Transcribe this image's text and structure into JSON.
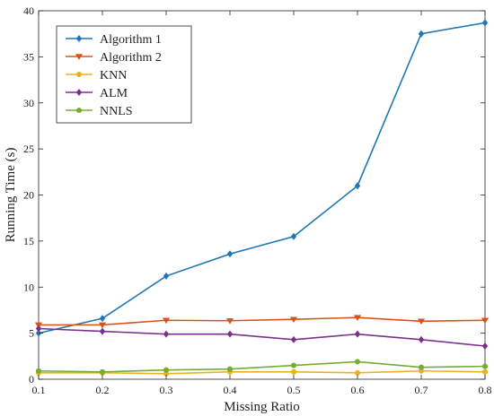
{
  "chart_data": {
    "type": "line",
    "title": "",
    "xlabel": "Missing Ratio",
    "ylabel": "Running Time (s)",
    "xlim": [
      0.1,
      0.8
    ],
    "ylim": [
      0,
      40
    ],
    "x": [
      0.1,
      0.2,
      0.3,
      0.4,
      0.5,
      0.6,
      0.7,
      0.8
    ],
    "xticks": [
      "0.1",
      "0.2",
      "0.3",
      "0.4",
      "0.5",
      "0.6",
      "0.7",
      "0.8"
    ],
    "yticks": [
      "0",
      "5",
      "10",
      "15",
      "20",
      "25",
      "30",
      "35",
      "40"
    ],
    "grid": false,
    "legend_position": "top-left",
    "series": [
      {
        "name": "Algorithm 1",
        "color": "#1f77b4",
        "marker": "diamond",
        "values": [
          5.0,
          6.6,
          11.2,
          13.6,
          15.5,
          21.0,
          37.5,
          38.7
        ]
      },
      {
        "name": "Algorithm 2",
        "color": "#d95319",
        "marker": "triangle-down",
        "values": [
          5.9,
          5.9,
          6.4,
          6.35,
          6.5,
          6.7,
          6.3,
          6.4
        ]
      },
      {
        "name": "KNN",
        "color": "#edb120",
        "marker": "circle",
        "values": [
          0.7,
          0.7,
          0.6,
          0.8,
          0.8,
          0.7,
          0.9,
          0.8
        ]
      },
      {
        "name": "ALM",
        "color": "#7e2f8e",
        "marker": "diamond",
        "values": [
          5.5,
          5.2,
          4.9,
          4.9,
          4.3,
          4.9,
          4.3,
          3.6
        ]
      },
      {
        "name": "NNLS",
        "color": "#77ac30",
        "marker": "circle",
        "values": [
          0.9,
          0.8,
          1.0,
          1.1,
          1.5,
          1.9,
          1.3,
          1.4
        ]
      }
    ]
  }
}
